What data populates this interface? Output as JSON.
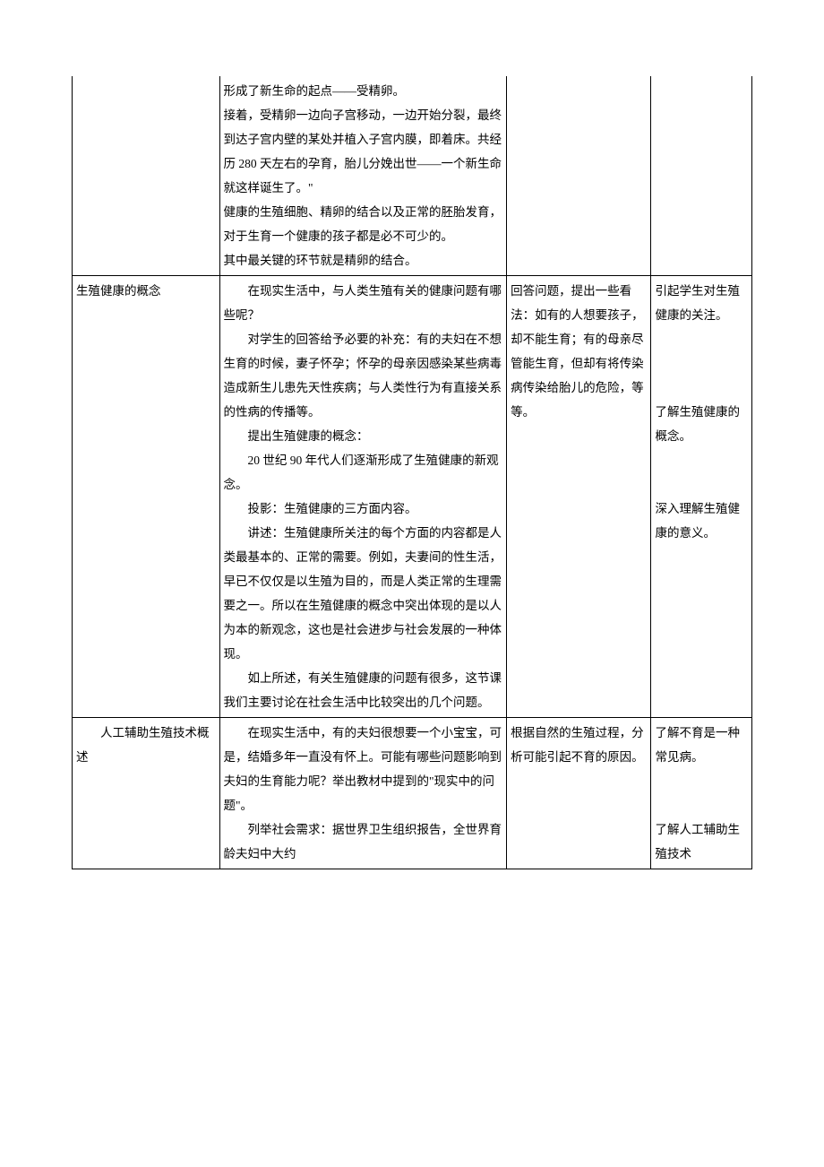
{
  "table": {
    "columns": {
      "widths": [
        155,
        302,
        152,
        106
      ]
    },
    "rows": [
      {
        "noTop": true,
        "col1": [],
        "col2": [
          {
            "t": "形成了新生命的起点——受精卵。"
          },
          {
            "t": "接着，受精卵一边向子宫移动，一边开始分裂，最终到达子宫内壁的某处并植入子宫内膜，即着床。共经历 280 天左右的孕育，胎儿分娩出世——一个新生命就这样诞生了。\""
          },
          {
            "t": "健康的生殖细胞、精卵的结合以及正常的胚胎发育，对于生育一个健康的孩子都是必不可少的。"
          },
          {
            "t": "其中最关键的环节就是精卵的结合。"
          }
        ],
        "col3": [],
        "col4": []
      },
      {
        "col1": [
          {
            "t": "生殖健康的概念"
          }
        ],
        "col2": [
          {
            "t": "在现实生活中，与人类生殖有关的健康问题有哪些呢？",
            "indent": true
          },
          {
            "t": "对学生的回答给予必要的补充：有的夫妇在不想生育的时候，妻子怀孕；怀孕的母亲因感染某些病毒造成新生儿患先天性疾病；与人类性行为有直接关系的性病的传播等。",
            "indent": true
          },
          {
            "t": "提出生殖健康的概念：",
            "indent": true
          },
          {
            "t": "20 世纪 90 年代人们逐渐形成了生殖健康的新观念。",
            "indent": true
          },
          {
            "t": "投影：生殖健康的三方面内容。",
            "indent": true
          },
          {
            "t": "讲述：生殖健康所关注的每个方面的内容都是人类最基本的、正常的需要。例如，夫妻间的性生活，早已不仅仅是以生殖为目的，而是人类正常的生理需要之一。所以在生殖健康的概念中突出体现的是以人为本的新观念，这也是社会进步与社会发展的一种体现。",
            "indent": true
          },
          {
            "t": "如上所述，有关生殖健康的问题有很多，这节课我们主要讨论在社会生活中比较突出的几个问题。",
            "indent": true
          }
        ],
        "col3": [
          {
            "t": "回答问题，提出一些看法：如有的人想要孩子，却不能生育；有的母亲尽管能生育，但却有将传染病传染给胎儿的危险，等等。"
          }
        ],
        "col4": [
          {
            "t": "引起学生对生殖健康的关注。"
          },
          {
            "t": "",
            "spacer": 3
          },
          {
            "t": "了解生殖健康的概念。"
          },
          {
            "t": "",
            "spacer": 2
          },
          {
            "t": "深入理解生殖健康的意义。"
          }
        ]
      },
      {
        "col1": [
          {
            "t": "人工辅助生殖技术概述",
            "indent": true
          }
        ],
        "col2": [
          {
            "t": "在现实生活中，有的夫妇很想要一个小宝宝，可是，结婚多年一直没有怀上。可能有哪些问题影响到夫妇的生育能力呢？举出教材中提到的\"现实中的问题\"。",
            "indent": true
          },
          {
            "t": "列举社会需求：据世界卫生组织报告，全世界育龄夫妇中大约",
            "indent": true
          }
        ],
        "col3": [
          {
            "t": "根据自然的生殖过程，分析可能引起不育的原因。"
          }
        ],
        "col4": [
          {
            "t": "了解不育是一种常见病。"
          },
          {
            "t": "",
            "spacer": 2
          },
          {
            "t": "了解人工辅助生殖技术"
          }
        ]
      }
    ]
  },
  "colors": {
    "background": "#ffffff",
    "border": "#000000",
    "text": "#000000"
  },
  "typography": {
    "font_family": "SimSun",
    "font_size": 13.5,
    "line_height": 2.0
  }
}
